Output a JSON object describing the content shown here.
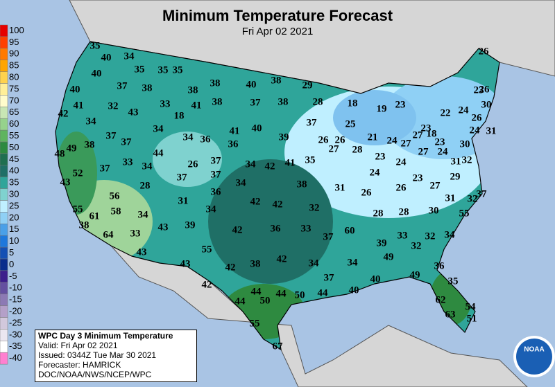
{
  "header": {
    "title": "Minimum Temperature Forecast",
    "subtitle": "Fri Apr 02 2021"
  },
  "legend": {
    "labels": [
      100,
      95,
      90,
      85,
      80,
      75,
      70,
      65,
      60,
      55,
      50,
      45,
      40,
      35,
      30,
      25,
      20,
      15,
      10,
      5,
      0,
      -5,
      -10,
      -15,
      -20,
      -25,
      -30,
      -35,
      -40
    ]
  },
  "info": {
    "lines": [
      "WPC Day 3 Minimum Temperature",
      "Valid: Fri Apr 02 2021",
      "Issued: 0344Z Tue Mar 30 2021",
      "Forecaster: HAMRICK",
      "DOC/NOAA/NWS/NCEP/WPC"
    ]
  },
  "logo_text": "NOAA",
  "map": {
    "labels": [
      35,
      40,
      34,
      35,
      35,
      35,
      40,
      40,
      37,
      38,
      38,
      38,
      40,
      38,
      29,
      26,
      41,
      32,
      43,
      33,
      41,
      38,
      37,
      38,
      28,
      18,
      19,
      23,
      23,
      26,
      42,
      34,
      18,
      22,
      24,
      30,
      26,
      25,
      37,
      41,
      40,
      39,
      34,
      34,
      36,
      37,
      37,
      26,
      26,
      21,
      24,
      27,
      27,
      18,
      23,
      23,
      24,
      31,
      48,
      49,
      38,
      36,
      27,
      28,
      27,
      24,
      30,
      44,
      33,
      34,
      37,
      26,
      37,
      34,
      42,
      41,
      35,
      23,
      24,
      31,
      32,
      52,
      43,
      37,
      37,
      34,
      24,
      23,
      29,
      28,
      56,
      36,
      38,
      31,
      26,
      26,
      27,
      37,
      55,
      58,
      31,
      42,
      42,
      32,
      28,
      28,
      30,
      31,
      32,
      61,
      34,
      34,
      55,
      38,
      43,
      39,
      42,
      36,
      33,
      60,
      64,
      33,
      37,
      34,
      32,
      33,
      32,
      39,
      55,
      43,
      42,
      38,
      34,
      34,
      49,
      43,
      42,
      36,
      37,
      40,
      49,
      35,
      42,
      44,
      44,
      40,
      44,
      50,
      44,
      50,
      62,
      54,
      63,
      51,
      55,
      67
    ]
  }
}
